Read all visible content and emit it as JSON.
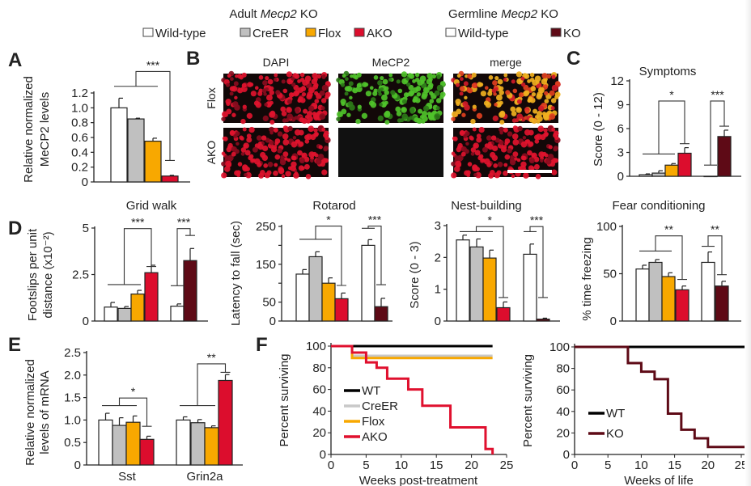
{
  "legend": {
    "adult_title_pre": "Adult ",
    "adult_title_gene": "Mecp2",
    "adult_title_post": " KO",
    "germline_title_pre": "Germline ",
    "germline_title_gene": "Mecp2",
    "germline_title_post": " KO",
    "adult_items": [
      {
        "label": "Wild-type",
        "color": "#ffffff"
      },
      {
        "label": "CreER",
        "color": "#c0c0c0"
      },
      {
        "label": "Flox",
        "color": "#f8a800"
      },
      {
        "label": "AKO",
        "color": "#dc0d2d"
      }
    ],
    "germline_items": [
      {
        "label": "Wild-type",
        "color": "#ffffff"
      },
      {
        "label": "KO",
        "color": "#5e0a16"
      }
    ]
  },
  "panel_letters": {
    "A": "A",
    "B": "B",
    "C": "C",
    "D": "D",
    "E": "E",
    "F": "F"
  },
  "micrographs": {
    "columns": [
      "DAPI",
      "MeCP2",
      "merge"
    ],
    "rows": [
      "Flox",
      "AKO"
    ]
  },
  "chart_data": [
    {
      "id": "A",
      "type": "bar",
      "title": "",
      "ylabel": [
        "Relative normalized",
        "MeCP2 levels"
      ],
      "ylim": [
        0,
        1.2
      ],
      "yticks": [
        0,
        0.2,
        0.4,
        0.6,
        0.8,
        1.0,
        1.2
      ],
      "ytick_labels": [
        "0",
        "0.2",
        "0.4",
        "0.6",
        "0.8",
        "1.0",
        "1.2"
      ],
      "bars": [
        {
          "group": "Wild-type",
          "value": 1.0,
          "error": 0.13
        },
        {
          "group": "CreER",
          "value": 0.85,
          "error": 0.01
        },
        {
          "group": "Flox",
          "value": 0.55,
          "error": 0.04
        },
        {
          "group": "AKO",
          "value": 0.08,
          "error": 0.01
        }
      ],
      "significance": [
        {
          "label": "***",
          "left": [
            0,
            2
          ],
          "left_level": 1.29,
          "top_level": 1.49,
          "right": 3,
          "right_level": 0.29
        }
      ]
    },
    {
      "id": "C",
      "type": "bar",
      "title": "Symptoms",
      "ylabel": [
        "Score (0 - 12)"
      ],
      "ylim": [
        0,
        12
      ],
      "yticks": [
        0,
        3,
        6,
        9,
        12
      ],
      "ytick_labels": [
        "0",
        "3",
        "6",
        "9",
        "12"
      ],
      "bars": [
        {
          "group": "Wild-type",
          "value": 0.2,
          "error": 0.1
        },
        {
          "group": "CreER",
          "value": 0.4,
          "error": 0.3
        },
        {
          "group": "Flox",
          "value": 1.4,
          "error": 0.2
        },
        {
          "group": "AKO",
          "value": 2.9,
          "error": 0.7
        },
        {
          "group": "Germline Wild-type",
          "value": 0,
          "error": 0
        },
        {
          "group": "KO",
          "value": 5.0,
          "error": 0.8
        }
      ],
      "significance": [
        {
          "label": "*",
          "left": [
            0,
            2
          ],
          "left_level": 2.8,
          "top_level": 9.46,
          "right": 3,
          "right_level": 4.1
        },
        {
          "label": "***",
          "left": [
            4,
            4
          ],
          "left_level": 1.4,
          "top_level": 9.46,
          "right": 5,
          "right_level": 6.3
        }
      ]
    },
    {
      "id": "D1",
      "type": "bar",
      "title": "Grid walk",
      "ylabel": [
        "Footslips per unit",
        "distance (x10⁻²)"
      ],
      "ylim": [
        0,
        5
      ],
      "yticks": [
        0,
        2.5,
        5
      ],
      "ytick_labels": [
        "0",
        "2.5",
        "5"
      ],
      "bars": [
        {
          "group": "Wild-type",
          "value": 0.75,
          "error": 0.25
        },
        {
          "group": "CreER",
          "value": 0.68,
          "error": 0.1
        },
        {
          "group": "Flox",
          "value": 1.45,
          "error": 0.2
        },
        {
          "group": "AKO",
          "value": 2.6,
          "error": 0.4
        },
        {
          "group": "Germline Wild-type",
          "value": 0.8,
          "error": 0.12
        },
        {
          "group": "KO",
          "value": 3.25,
          "error": 0.65
        }
      ],
      "significance": [
        {
          "label": "***",
          "left": [
            0,
            2
          ],
          "left_level": 1.96,
          "top_level": 4.97,
          "right": 3,
          "right_level": 2.93
        },
        {
          "label": "***",
          "left": [
            4,
            4
          ],
          "left_level": 1.9,
          "top_level": 4.97,
          "right": 5,
          "right_level": 4.6
        }
      ]
    },
    {
      "id": "D2",
      "type": "bar",
      "title": "Rotarod",
      "ylabel": [
        "Latency to fall (sec)"
      ],
      "ylim": [
        0,
        250
      ],
      "yticks": [
        0,
        50,
        100,
        150,
        200,
        250
      ],
      "ytick_labels": [
        "0",
        "50",
        "",
        "150",
        "",
        "250"
      ],
      "bars": [
        {
          "group": "Wild-type",
          "value": 124,
          "error": 12
        },
        {
          "group": "CreER",
          "value": 170,
          "error": 13
        },
        {
          "group": "Flox",
          "value": 100,
          "error": 14
        },
        {
          "group": "AKO",
          "value": 59,
          "error": 15
        },
        {
          "group": "Germline Wild-type",
          "value": 200,
          "error": 15
        },
        {
          "group": "KO",
          "value": 38,
          "error": 22
        }
      ],
      "significance": [
        {
          "label": "*",
          "left": [
            0,
            2
          ],
          "left_level": 216,
          "top_level": 251,
          "right": 3,
          "right_level": 94
        },
        {
          "label": "***",
          "left": [
            4,
            4
          ],
          "left_level": 245,
          "top_level": 251,
          "right": 5,
          "right_level": 96
        }
      ]
    },
    {
      "id": "D3",
      "type": "bar",
      "title": "Nest-building",
      "ylabel": [
        "Score (0 - 3)"
      ],
      "ylim": [
        0,
        3
      ],
      "yticks": [
        0,
        1,
        2,
        3
      ],
      "ytick_labels": [
        "0",
        "1",
        "2",
        "3"
      ],
      "bars": [
        {
          "group": "Wild-type",
          "value": 2.55,
          "error": 0.15
        },
        {
          "group": "CreER",
          "value": 2.33,
          "error": 0.25
        },
        {
          "group": "Flox",
          "value": 1.98,
          "error": 0.25
        },
        {
          "group": "AKO",
          "value": 0.42,
          "error": 0.18
        },
        {
          "group": "Germline Wild-type",
          "value": 2.1,
          "error": 0.32
        },
        {
          "group": "KO",
          "value": 0.06,
          "error": 0.03
        }
      ],
      "significance": [
        {
          "label": "*",
          "left": [
            0,
            2
          ],
          "left_level": 2.81,
          "top_level": 2.97,
          "right": 3,
          "right_level": 0.74
        },
        {
          "label": "***",
          "left": [
            4,
            4
          ],
          "left_level": 2.81,
          "top_level": 2.97,
          "right": 5,
          "right_level": 0.74
        }
      ]
    },
    {
      "id": "D4",
      "type": "bar",
      "title": "Fear conditioning",
      "ylabel": [
        "% time freezing"
      ],
      "ylim": [
        0,
        100
      ],
      "yticks": [
        0,
        50,
        100
      ],
      "ytick_labels": [
        "0",
        "50",
        "100"
      ],
      "bars": [
        {
          "group": "Wild-type",
          "value": 55,
          "error": 4
        },
        {
          "group": "CreER",
          "value": 62,
          "error": 3
        },
        {
          "group": "Flox",
          "value": 47,
          "error": 4
        },
        {
          "group": "AKO",
          "value": 33,
          "error": 4
        },
        {
          "group": "Germline Wild-type",
          "value": 62,
          "error": 11
        },
        {
          "group": "KO",
          "value": 37,
          "error": 5
        }
      ],
      "significance": [
        {
          "label": "**",
          "left": [
            0,
            2
          ],
          "left_level": 74,
          "top_level": 90,
          "right": 3,
          "right_level": 44
        },
        {
          "label": "**",
          "left": [
            4,
            4
          ],
          "left_level": 79,
          "top_level": 90,
          "right": 5,
          "right_level": 49
        }
      ]
    },
    {
      "id": "E",
      "type": "bar",
      "title": "",
      "ylabel": [
        "Relative normalized",
        "levels of mRNA"
      ],
      "categories": [
        "Sst",
        "Grin2a"
      ],
      "ylim": [
        0,
        2.5
      ],
      "yticks": [
        0,
        0.5,
        1.0,
        1.5,
        2.0,
        2.5
      ],
      "ytick_labels": [
        "0",
        "0.5",
        "1.0",
        "1.5",
        "2.0",
        "2.5"
      ],
      "bars": [
        {
          "group": "Wild-type",
          "category": "Sst",
          "value": 1.0,
          "error": 0.15
        },
        {
          "group": "CreER",
          "category": "Sst",
          "value": 0.88,
          "error": 0.17
        },
        {
          "group": "Flox",
          "category": "Sst",
          "value": 0.95,
          "error": 0.14
        },
        {
          "group": "AKO",
          "category": "Sst",
          "value": 0.57,
          "error": 0.07
        },
        {
          "group": "Wild-type",
          "category": "Grin2a",
          "value": 1.0,
          "error": 0.07
        },
        {
          "group": "CreER",
          "category": "Grin2a",
          "value": 0.94,
          "error": 0.07
        },
        {
          "group": "Flox",
          "category": "Grin2a",
          "value": 0.83,
          "error": 0.04
        },
        {
          "group": "AKO",
          "category": "Grin2a",
          "value": 1.88,
          "error": 0.13
        }
      ],
      "significance": [
        {
          "label": "*",
          "left": [
            0,
            2
          ],
          "left_level": 1.32,
          "top_level": 1.49,
          "right": 3,
          "right_level": 0.86
        },
        {
          "label": "**",
          "left": [
            4,
            6
          ],
          "left_level": 1.32,
          "top_level": 2.25,
          "right": 7,
          "right_level": 2.06
        }
      ]
    },
    {
      "id": "F1",
      "type": "line",
      "title": "",
      "xlabel": "Weeks post-treatment",
      "ylabel": "Percent surviving",
      "xlim": [
        0,
        25
      ],
      "ylim": [
        0,
        100
      ],
      "xticks": [
        0,
        5,
        10,
        15,
        20,
        25
      ],
      "yticks": [
        0,
        20,
        40,
        60,
        80,
        100
      ],
      "legend": "bottom-left",
      "series": [
        {
          "name": "WT",
          "color": "#000000",
          "end": 23,
          "steps": [
            [
              0,
              100
            ]
          ]
        },
        {
          "name": "CreER",
          "color": "#c8c8c8",
          "end": 23,
          "steps": [
            [
              0,
              100
            ],
            [
              3,
              91
            ]
          ]
        },
        {
          "name": "Flox",
          "color": "#f8a800",
          "end": 23,
          "steps": [
            [
              0,
              100
            ],
            [
              3,
              89
            ]
          ]
        },
        {
          "name": "AKO",
          "color": "#e0102e",
          "end": 23,
          "steps": [
            [
              0,
              100
            ],
            [
              3,
              94
            ],
            [
              5,
              85
            ],
            [
              6.5,
              80
            ],
            [
              8,
              70
            ],
            [
              11,
              60
            ],
            [
              13,
              45
            ],
            [
              17,
              25
            ],
            [
              22,
              5
            ],
            [
              23,
              0
            ]
          ]
        }
      ]
    },
    {
      "id": "F2",
      "type": "line",
      "title": "",
      "xlabel": "Weeks of life",
      "ylabel": "Percent surviving",
      "xlim": [
        0,
        26
      ],
      "ylim": [
        0,
        100
      ],
      "xticks": [
        0,
        5,
        10,
        15,
        20,
        25
      ],
      "yticks": [
        0,
        20,
        40,
        60,
        80,
        100
      ],
      "legend": "bottom-left",
      "series": [
        {
          "name": "WT",
          "color": "#000000",
          "end": 26,
          "steps": [
            [
              0,
              100
            ]
          ]
        },
        {
          "name": "KO",
          "color": "#5e0a16",
          "end": 26,
          "steps": [
            [
              0,
              100
            ],
            [
              8,
              85
            ],
            [
              10,
              77
            ],
            [
              12,
              70
            ],
            [
              14,
              38
            ],
            [
              16,
              23
            ],
            [
              18,
              15
            ],
            [
              20,
              7
            ],
            [
              26,
              0
            ]
          ]
        }
      ]
    }
  ]
}
